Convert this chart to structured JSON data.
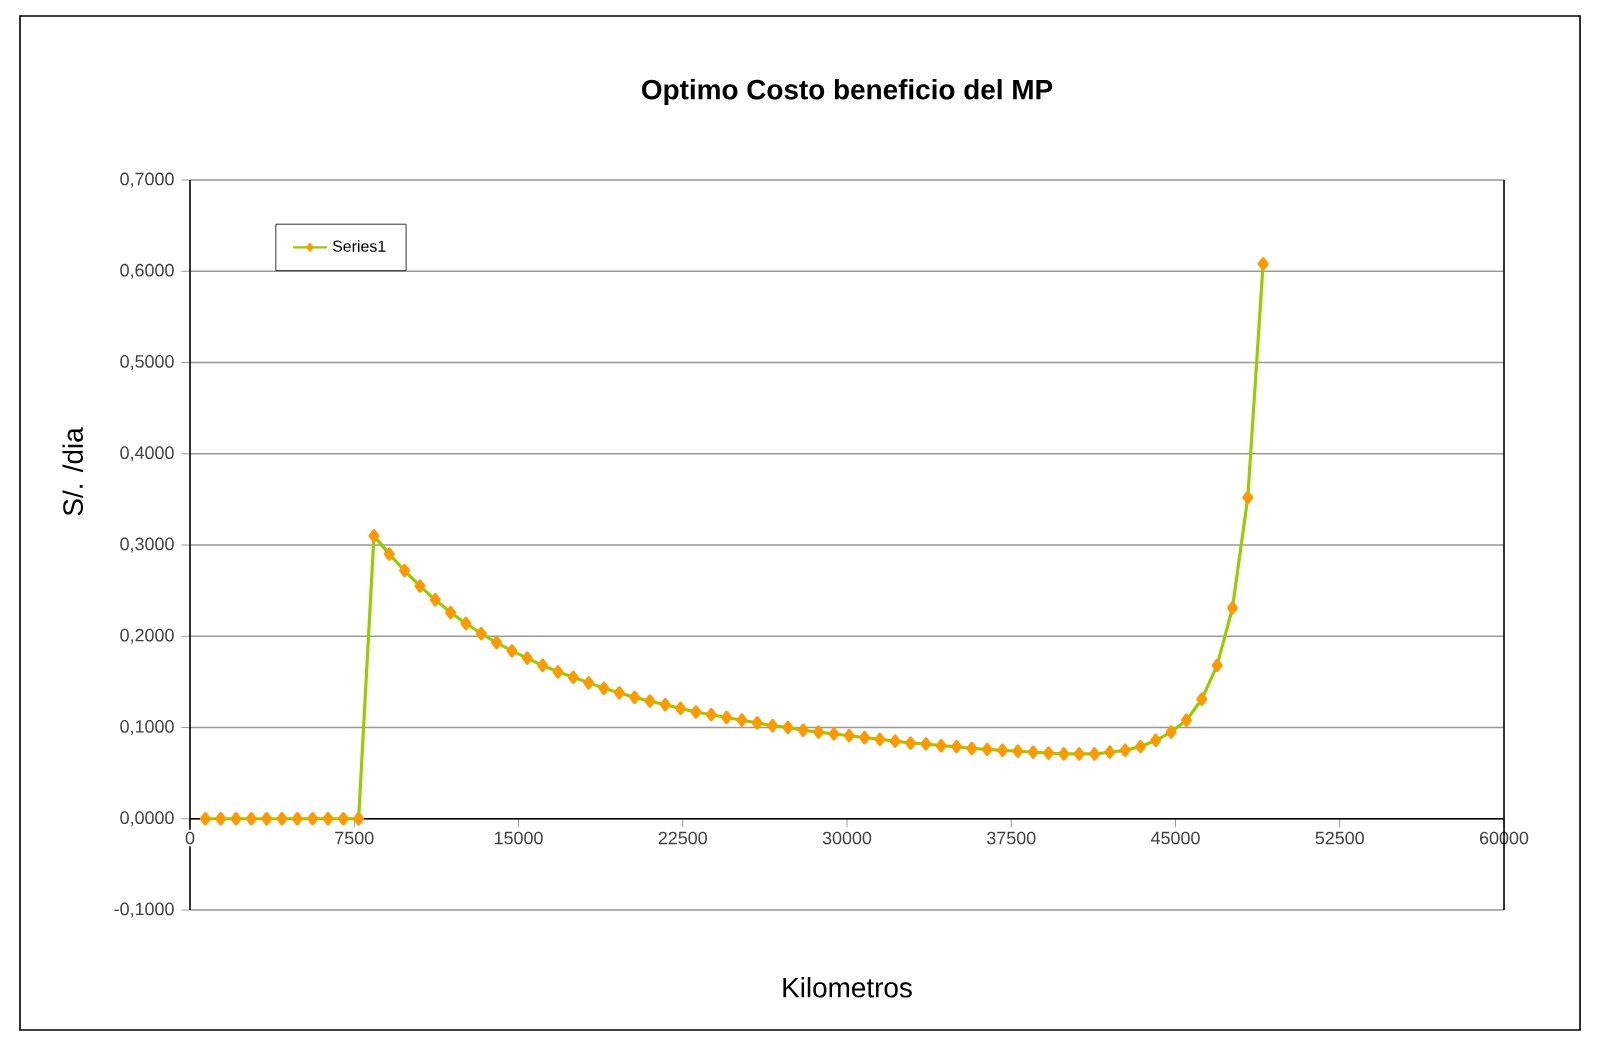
{
  "chart_data": {
    "type": "line",
    "title": "Optimo Costo beneficio del MP",
    "xlabel": "Kilometros",
    "ylabel": "S/. /dia",
    "x": [
      700,
      1400,
      2100,
      2800,
      3500,
      4200,
      4900,
      5600,
      6300,
      7000,
      7700,
      8400,
      9100,
      9800,
      10500,
      11200,
      11900,
      12600,
      13300,
      14000,
      14700,
      15400,
      16100,
      16800,
      17500,
      18200,
      18900,
      19600,
      20300,
      21000,
      21700,
      22400,
      23100,
      23800,
      24500,
      25200,
      25900,
      26600,
      27300,
      28000,
      28700,
      29400,
      30100,
      30800,
      31500,
      32200,
      32900,
      33600,
      34300,
      35000,
      35700,
      36400,
      37100,
      37800,
      38500,
      39200,
      39900,
      40600,
      41300,
      42000,
      42700,
      43400,
      44100,
      44800,
      45500,
      46200,
      46900,
      47600,
      48300,
      49000
    ],
    "series": [
      {
        "name": "Series1",
        "color": "#ff9900",
        "values": [
          0,
          0,
          0,
          0,
          0,
          0,
          0,
          0,
          0,
          0,
          0,
          0.31,
          0.29,
          0.272,
          0.255,
          0.24,
          0.226,
          0.214,
          0.203,
          0.193,
          0.184,
          0.176,
          0.168,
          0.161,
          0.155,
          0.149,
          0.143,
          0.138,
          0.133,
          0.129,
          0.125,
          0.121,
          0.117,
          0.114,
          0.111,
          0.108,
          0.105,
          0.102,
          0.1,
          0.097,
          0.095,
          0.093,
          0.091,
          0.089,
          0.087,
          0.085,
          0.083,
          0.082,
          0.08,
          0.079,
          0.077,
          0.076,
          0.075,
          0.074,
          0.073,
          0.072,
          0.071,
          0.071,
          0.071,
          0.073,
          0.075,
          0.079,
          0.086,
          0.095,
          0.108,
          0.131,
          0.168,
          0.231,
          0.352,
          0.608
        ]
      }
    ],
    "xlim": [
      0,
      60000
    ],
    "ylim": [
      -0.1,
      0.7
    ],
    "xticks": [
      0,
      7500,
      15000,
      22500,
      30000,
      37500,
      45000,
      52500,
      60000
    ],
    "yticks": [
      {
        "value": -0.1,
        "label": "-0,1000"
      },
      {
        "value": 0,
        "label": "0,0000"
      },
      {
        "value": 0.1,
        "label": "0,1000"
      },
      {
        "value": 0.2,
        "label": "0,2000"
      },
      {
        "value": 0.3,
        "label": "0,3000"
      },
      {
        "value": 0.4,
        "label": "0,4000"
      },
      {
        "value": 0.5,
        "label": "0,5000"
      },
      {
        "value": 0.6,
        "label": "0,6000"
      },
      {
        "value": 0.7,
        "label": "0,7000"
      }
    ],
    "grid": "y",
    "legend": "top left",
    "marker": "diamond",
    "line_style": "solid"
  }
}
